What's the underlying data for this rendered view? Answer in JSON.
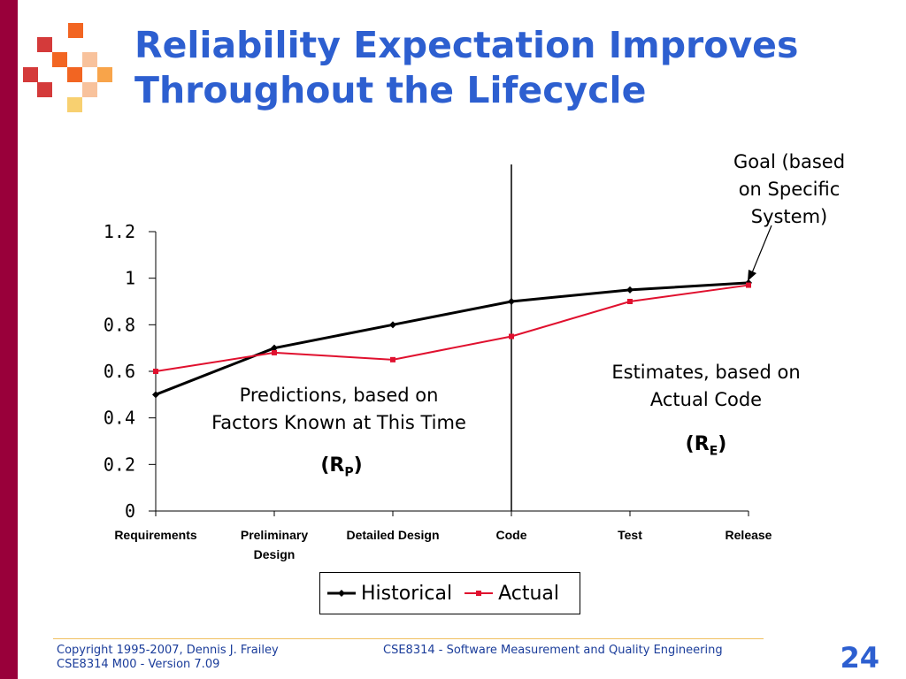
{
  "slide": {
    "title_line1": "Reliability Expectation Improves",
    "title_line2": "Throughout the Lifecycle",
    "page_number": "24",
    "colors": {
      "title": "#2d5fd0",
      "side_bar": "#99003a"
    }
  },
  "annotations": {
    "goal": [
      "Goal (based",
      "on Specific",
      "System)"
    ],
    "predictions": [
      "Predictions, based on",
      "Factors Known at This Time"
    ],
    "predictions_symbol": "R",
    "predictions_sub": "P",
    "estimates": [
      "Estimates, based on",
      "Actual Code"
    ],
    "estimates_symbol": "R",
    "estimates_sub": "E"
  },
  "legend": {
    "historical": "Historical",
    "actual": "Actual"
  },
  "footer": {
    "left_line1": "Copyright 1995-2007, Dennis J. Frailey",
    "left_line2": "CSE8314 M00 - Version 7.09",
    "center": "CSE8314 - Software Measurement and Quality Engineering"
  },
  "chart_data": {
    "type": "line",
    "categories": [
      "Requirements",
      "Preliminary Design",
      "Detailed Design",
      "Code",
      "Test",
      "Release"
    ],
    "category_lines": [
      [
        "Requirements"
      ],
      [
        "Preliminary",
        "Design"
      ],
      [
        "Detailed Design"
      ],
      [
        "Code"
      ],
      [
        "Test"
      ],
      [
        "Release"
      ]
    ],
    "series": [
      {
        "name": "Historical",
        "color": "#000000",
        "values": [
          0.5,
          0.7,
          0.8,
          0.9,
          0.95,
          0.98
        ]
      },
      {
        "name": "Actual",
        "color": "#e0102e",
        "values": [
          0.6,
          0.68,
          0.65,
          0.75,
          0.9,
          0.97
        ]
      }
    ],
    "y_ticks": [
      "0",
      "0.2",
      "0.4",
      "0.6",
      "0.8",
      "1",
      "1.2"
    ],
    "ylim": [
      0,
      1.2
    ],
    "divider_at": "Code",
    "grid": false,
    "legend_position": "bottom"
  }
}
